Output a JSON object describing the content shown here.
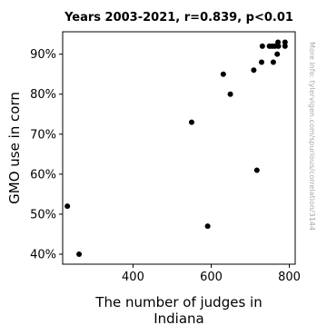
{
  "chart_data": {
    "type": "scatter",
    "title": "Years 2003-2021, r=0.839, p<0.01",
    "xlabel_lines": [
      "The number of judges in",
      "Indiana"
    ],
    "ylabel": "GMO use in corn",
    "watermark": "More info: tylervigen.com/spurious/correlation/3144",
    "xlim": [
      220,
      815
    ],
    "ylim": [
      37.5,
      95.6
    ],
    "xticks": [
      400,
      600,
      800
    ],
    "xtick_labels": [
      "400",
      "600",
      "800"
    ],
    "yticks": [
      40,
      50,
      60,
      70,
      80,
      90
    ],
    "ytick_labels": [
      "40%",
      "50%",
      "60%",
      "70%",
      "80%",
      "90%"
    ],
    "marker_color": "#000000",
    "points": [
      {
        "x": 232,
        "y": 52
      },
      {
        "x": 262,
        "y": 40
      },
      {
        "x": 550,
        "y": 73
      },
      {
        "x": 591,
        "y": 47
      },
      {
        "x": 631,
        "y": 85
      },
      {
        "x": 649,
        "y": 80
      },
      {
        "x": 709,
        "y": 86
      },
      {
        "x": 717,
        "y": 61
      },
      {
        "x": 729,
        "y": 88
      },
      {
        "x": 731,
        "y": 92
      },
      {
        "x": 749,
        "y": 92
      },
      {
        "x": 756,
        "y": 92
      },
      {
        "x": 759,
        "y": 88
      },
      {
        "x": 763,
        "y": 92
      },
      {
        "x": 769,
        "y": 90
      },
      {
        "x": 771,
        "y": 93
      },
      {
        "x": 772,
        "y": 92
      },
      {
        "x": 789,
        "y": 92
      },
      {
        "x": 789,
        "y": 93
      }
    ]
  }
}
